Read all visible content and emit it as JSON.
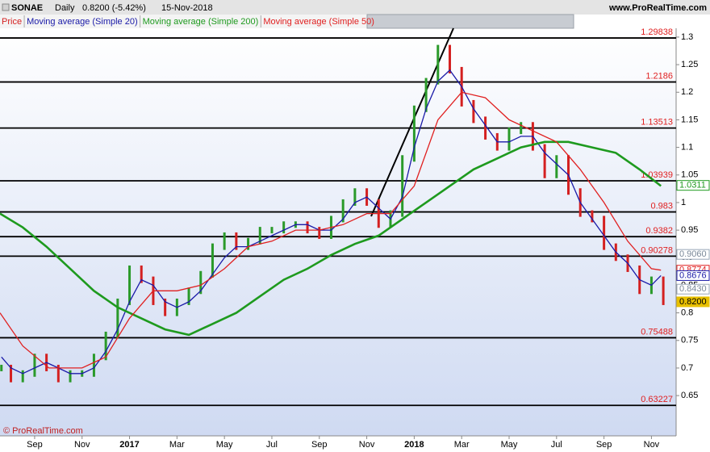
{
  "header": {
    "symbol": "SONAE",
    "period": "Daily",
    "last": "0.8200 (-5.42%)",
    "date": "15-Nov-2018",
    "site": "www.ProRealTime.com",
    "copyright": "© ProRealTime.com"
  },
  "chart_data": {
    "type": "line",
    "xlim": [
      -1.46,
      27.04
    ],
    "xticks": [
      {
        "value": 0,
        "label": "Sep"
      },
      {
        "value": 2,
        "label": "Nov"
      },
      {
        "value": 4,
        "label": "2017"
      },
      {
        "value": 6,
        "label": "Mar"
      },
      {
        "value": 8,
        "label": "May"
      },
      {
        "value": 10,
        "label": "Jul"
      },
      {
        "value": 12,
        "label": "Sep"
      },
      {
        "value": 14,
        "label": "Nov"
      },
      {
        "value": 16,
        "label": "2018"
      },
      {
        "value": 18,
        "label": "Mar"
      },
      {
        "value": 20,
        "label": "May"
      },
      {
        "value": 22,
        "label": "Jul"
      },
      {
        "value": 24,
        "label": "Sep"
      },
      {
        "value": 26,
        "label": "Nov"
      }
    ],
    "ylim": [
      0.577,
      1.316
    ],
    "yticks": [
      0.65,
      0.7,
      0.75,
      0.8,
      0.85,
      0.9,
      0.95,
      1,
      1.05,
      1.1,
      1.15,
      1.2,
      1.25,
      1.3
    ],
    "series": [
      {
        "name": "Price",
        "color": "#d42020",
        "style": "bars",
        "x": [
          -1.4,
          -1,
          -0.5,
          0,
          0.5,
          1,
          1.5,
          2,
          2.5,
          3,
          3.5,
          4,
          4.5,
          5,
          5.5,
          6,
          6.5,
          7,
          7.5,
          8,
          8.5,
          9,
          9.5,
          10,
          10.5,
          11,
          11.5,
          12,
          12.5,
          13,
          13.5,
          14,
          14.5,
          15,
          15.5,
          16,
          16.5,
          17,
          17.5,
          18,
          18.5,
          19,
          19.5,
          20,
          20.5,
          21,
          21.5,
          22,
          22.5,
          23,
          23.5,
          24,
          24.5,
          25,
          25.5,
          26,
          26.5
        ],
        "values": [
          0.7,
          0.68,
          0.69,
          0.72,
          0.7,
          0.68,
          0.69,
          0.69,
          0.72,
          0.76,
          0.82,
          0.88,
          0.86,
          0.82,
          0.8,
          0.82,
          0.84,
          0.87,
          0.92,
          0.94,
          0.92,
          0.93,
          0.95,
          0.95,
          0.96,
          0.96,
          0.95,
          0.94,
          0.97,
          1.0,
          1.02,
          1.0,
          0.96,
          0.98,
          1.08,
          1.17,
          1.22,
          1.28,
          1.24,
          1.18,
          1.15,
          1.12,
          1.1,
          1.13,
          1.14,
          1.1,
          1.05,
          1.08,
          1.02,
          0.98,
          0.97,
          0.92,
          0.9,
          0.88,
          0.84,
          0.86,
          0.82
        ]
      },
      {
        "name": "Moving average (Simple 20)",
        "color": "#1a1aa8",
        "x": [
          -1.4,
          -1,
          -0.5,
          0,
          0.5,
          1,
          1.5,
          2,
          2.5,
          3,
          3.5,
          4,
          4.5,
          5,
          5.5,
          6,
          6.5,
          7,
          7.5,
          8,
          8.5,
          9,
          9.5,
          10,
          10.5,
          11,
          11.5,
          12,
          12.5,
          13,
          13.5,
          14,
          14.5,
          15,
          15.5,
          16,
          16.5,
          17,
          17.5,
          18,
          18.5,
          19,
          19.5,
          20,
          20.5,
          21,
          21.5,
          22,
          22.5,
          23,
          23.5,
          24,
          24.5,
          25,
          25.5,
          26,
          26.4
        ],
        "values": [
          0.72,
          0.7,
          0.69,
          0.7,
          0.71,
          0.7,
          0.69,
          0.69,
          0.7,
          0.73,
          0.77,
          0.82,
          0.86,
          0.85,
          0.82,
          0.81,
          0.82,
          0.84,
          0.87,
          0.9,
          0.92,
          0.92,
          0.93,
          0.94,
          0.95,
          0.96,
          0.96,
          0.95,
          0.95,
          0.97,
          1.0,
          1.01,
          0.99,
          0.97,
          1.01,
          1.1,
          1.17,
          1.22,
          1.24,
          1.21,
          1.17,
          1.14,
          1.11,
          1.11,
          1.12,
          1.12,
          1.09,
          1.07,
          1.05,
          1.0,
          0.97,
          0.94,
          0.91,
          0.89,
          0.86,
          0.85,
          0.8676
        ]
      },
      {
        "name": "Moving average (Simple 200)",
        "color": "#1e9a1e",
        "x": [
          -1.46,
          -0.5,
          0.5,
          1.5,
          2.5,
          3.5,
          4.5,
          5.5,
          6.5,
          7.5,
          8.5,
          9.5,
          10.5,
          11.5,
          12.5,
          13.5,
          14.5,
          15.5,
          16.5,
          17.5,
          18.5,
          19.5,
          20.5,
          21.5,
          22.5,
          23.5,
          24.5,
          25.5,
          26.4
        ],
        "values": [
          0.98,
          0.955,
          0.92,
          0.88,
          0.84,
          0.81,
          0.79,
          0.77,
          0.76,
          0.78,
          0.8,
          0.83,
          0.86,
          0.88,
          0.905,
          0.925,
          0.94,
          0.97,
          1.0,
          1.03,
          1.06,
          1.08,
          1.1,
          1.11,
          1.11,
          1.1,
          1.09,
          1.06,
          1.03
        ]
      },
      {
        "name": "Moving average (Simple 50)",
        "color": "#e02020",
        "x": [
          -1.46,
          -0.5,
          0.6,
          2,
          3,
          4,
          5,
          6,
          7,
          8,
          9,
          10,
          11,
          12,
          13,
          14,
          15,
          16,
          17,
          18,
          19,
          20,
          21,
          22,
          23,
          24,
          25,
          26,
          26.4
        ],
        "values": [
          0.8,
          0.74,
          0.7,
          0.7,
          0.72,
          0.79,
          0.84,
          0.84,
          0.85,
          0.88,
          0.92,
          0.93,
          0.95,
          0.95,
          0.96,
          0.98,
          0.98,
          1.03,
          1.15,
          1.2,
          1.19,
          1.15,
          1.13,
          1.11,
          1.06,
          1.0,
          0.93,
          0.88,
          0.8774
        ]
      }
    ],
    "levels": [
      1.29838,
      1.2186,
      1.13513,
      1.03939,
      0.983,
      0.9382,
      0.90278,
      0.75488,
      0.63227
    ],
    "markers": [
      {
        "value": 1.0311,
        "label": "1.0311",
        "color": "#1e9a1e"
      },
      {
        "value": 0.906,
        "label": "0.9060",
        "color": "#9aa8b8"
      },
      {
        "value": 0.8774,
        "label": "0.8774",
        "color": "#e02020"
      },
      {
        "value": 0.8676,
        "label": "0.8676",
        "color": "#1a1aa8"
      },
      {
        "value": 0.843,
        "label": "0.8430",
        "color": "#9aa8b8"
      },
      {
        "value": 0.82,
        "label": "0.8200",
        "color": "#e8c000"
      }
    ]
  }
}
